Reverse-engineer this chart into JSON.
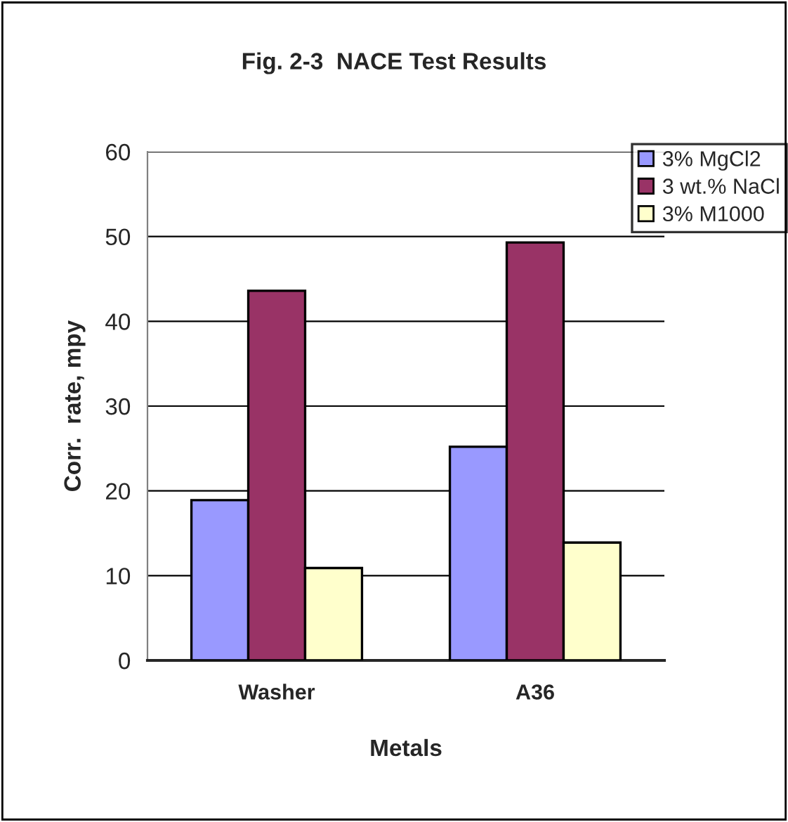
{
  "chart_data": {
    "type": "bar",
    "title": "Fig. 2-3  NACE Test Results",
    "xlabel": "Metals",
    "ylabel": "Corr.  rate, mpy",
    "categories": [
      "Washer",
      "A36"
    ],
    "series": [
      {
        "name": "3% MgCl2",
        "color": "#9999ff",
        "values": [
          18.9,
          25.2
        ]
      },
      {
        "name": "3 wt.% NaCl",
        "color": "#993366",
        "values": [
          43.6,
          49.3
        ]
      },
      {
        "name": "3% M1000",
        "color": "#ffffcc",
        "values": [
          10.9,
          13.9
        ]
      }
    ],
    "ylim": [
      0,
      60
    ],
    "yticks": [
      0,
      10,
      20,
      30,
      40,
      50,
      60
    ],
    "grid": "y",
    "legend": "top right"
  }
}
